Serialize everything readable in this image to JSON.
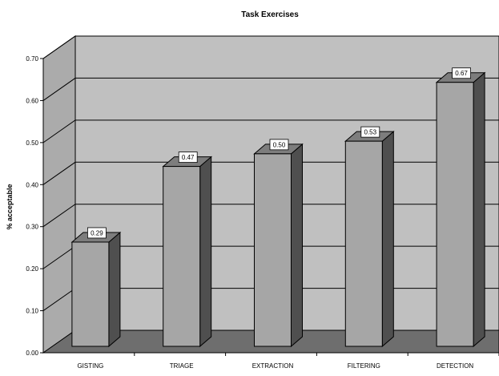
{
  "chart_data": {
    "type": "bar",
    "title": "Task Exercises",
    "ylabel": "% acceptable",
    "xlabel": "",
    "categories": [
      "GISTING",
      "TRIAGE",
      "EXTRACTION",
      "FILTERING",
      "DETECTION"
    ],
    "values": [
      0.29,
      0.47,
      0.5,
      0.53,
      0.67
    ],
    "value_labels": [
      "0.29",
      "0.47",
      "0.50",
      "0.53",
      "0.67"
    ],
    "yticks": [
      "0.00",
      "0.10",
      "0.20",
      "0.30",
      "0.40",
      "0.50",
      "0.60",
      "0.70"
    ],
    "ylim": [
      0,
      0.7
    ],
    "grid": true,
    "legend": "none",
    "colors": {
      "bar_front": "#a6a6a6",
      "bar_side": "#4f4f4f",
      "bar_top": "#7d7d7d",
      "back_wall": "#c0c0c0",
      "side_wall": "#ababab",
      "floor": "#6e6e6e"
    }
  }
}
